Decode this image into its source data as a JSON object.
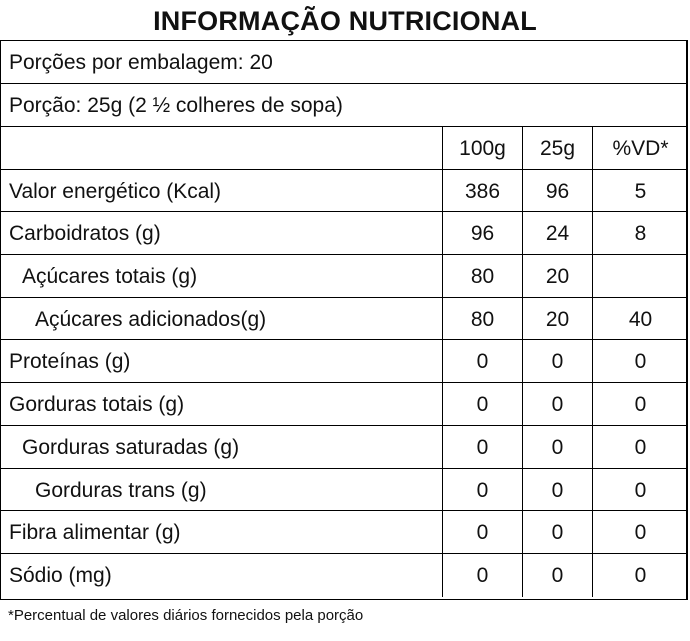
{
  "title": "INFORMAÇÃO NUTRICIONAL",
  "servings_per_package": "Porções por embalagem: 20",
  "serving_size": "Porção: 25g (2 ½ colheres de sopa)",
  "columns": {
    "per_100g": "100g",
    "per_serving": "25g",
    "daily_value": "%VD*"
  },
  "rows": [
    {
      "label": "Valor energético (Kcal)",
      "per_100g": "386",
      "per_serving": "96",
      "daily_value": "5"
    },
    {
      "label": "Carboidratos (g)",
      "per_100g": "96",
      "per_serving": "24",
      "daily_value": "8"
    },
    {
      "label": "Açúcares totais (g)",
      "per_100g": "80",
      "per_serving": "20",
      "daily_value": ""
    },
    {
      "label": "Açúcares adicionados(g)",
      "per_100g": "80",
      "per_serving": "20",
      "daily_value": "40"
    },
    {
      "label": "Proteínas (g)",
      "per_100g": "0",
      "per_serving": "0",
      "daily_value": "0"
    },
    {
      "label": "Gorduras totais (g)",
      "per_100g": "0",
      "per_serving": "0",
      "daily_value": "0"
    },
    {
      "label": "Gorduras saturadas (g)",
      "per_100g": "0",
      "per_serving": "0",
      "daily_value": "0"
    },
    {
      "label": "Gorduras trans (g)",
      "per_100g": "0",
      "per_serving": "0",
      "daily_value": "0"
    },
    {
      "label": "Fibra alimentar (g)",
      "per_100g": "0",
      "per_serving": "0",
      "daily_value": "0"
    },
    {
      "label": "Sódio (mg)",
      "per_100g": "0",
      "per_serving": "0",
      "daily_value": "0"
    }
  ],
  "footnote": "*Percentual de valores diários fornecidos pela porção"
}
